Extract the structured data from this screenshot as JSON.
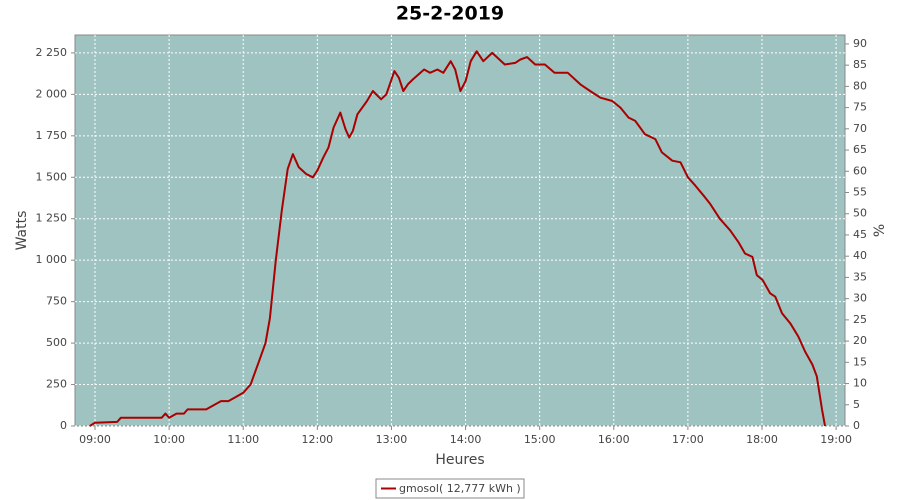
{
  "chart_data": {
    "type": "line",
    "title": "25-2-2019",
    "x_label": "Heures",
    "y_label": "Watts",
    "y2_label": "%",
    "x": [
      8.93,
      9.0,
      9.3,
      9.35,
      9.9,
      9.95,
      10.0,
      10.1,
      10.2,
      10.25,
      10.5,
      10.6,
      10.7,
      10.8,
      10.9,
      11.0,
      11.1,
      11.2,
      11.3,
      11.36,
      11.44,
      11.52,
      11.6,
      11.67,
      11.75,
      11.85,
      11.94,
      12.0,
      12.08,
      12.15,
      12.22,
      12.31,
      12.38,
      12.43,
      12.48,
      12.54,
      12.67,
      12.75,
      12.86,
      12.93,
      13.04,
      13.1,
      13.16,
      13.22,
      13.29,
      13.44,
      13.52,
      13.62,
      13.7,
      13.8,
      13.86,
      13.93,
      14.0,
      14.07,
      14.15,
      14.24,
      14.36,
      14.53,
      14.67,
      14.74,
      14.83,
      14.94,
      15.07,
      15.2,
      15.38,
      15.55,
      15.68,
      15.82,
      15.98,
      16.09,
      16.2,
      16.29,
      16.42,
      16.56,
      16.65,
      16.79,
      16.9,
      17.0,
      17.1,
      17.23,
      17.3,
      17.43,
      17.57,
      17.68,
      17.77,
      17.87,
      17.93,
      18.01,
      18.11,
      18.18,
      18.27,
      18.38,
      18.49,
      18.58,
      18.68,
      18.74,
      18.81,
      18.85
    ],
    "series": [
      {
        "name": "gmosol( 12,777 kWh )",
        "color": "#aa0000",
        "values": [
          0,
          20,
          25,
          50,
          50,
          75,
          50,
          75,
          75,
          100,
          100,
          125,
          150,
          150,
          175,
          200,
          250,
          375,
          500,
          650,
          1000,
          1300,
          1550,
          1640,
          1560,
          1520,
          1500,
          1540,
          1620,
          1680,
          1800,
          1890,
          1790,
          1740,
          1780,
          1880,
          1960,
          2020,
          1970,
          2000,
          2140,
          2100,
          2020,
          2060,
          2090,
          2150,
          2130,
          2150,
          2130,
          2200,
          2150,
          2020,
          2080,
          2200,
          2260,
          2200,
          2250,
          2180,
          2190,
          2210,
          2225,
          2180,
          2180,
          2130,
          2130,
          2060,
          2020,
          1980,
          1960,
          1920,
          1860,
          1840,
          1760,
          1730,
          1650,
          1600,
          1590,
          1500,
          1450,
          1380,
          1340,
          1250,
          1180,
          1110,
          1040,
          1020,
          910,
          880,
          800,
          780,
          680,
          620,
          540,
          450,
          370,
          300,
          100,
          0
        ]
      }
    ],
    "xlim": [
      8.73,
      19.12
    ],
    "xticks": [
      {
        "value": 9,
        "label": "09:00"
      },
      {
        "value": 10,
        "label": "10:00"
      },
      {
        "value": 11,
        "label": "11:00"
      },
      {
        "value": 12,
        "label": "12:00"
      },
      {
        "value": 13,
        "label": "13:00"
      },
      {
        "value": 14,
        "label": "14:00"
      },
      {
        "value": 15,
        "label": "15:00"
      },
      {
        "value": 16,
        "label": "16:00"
      },
      {
        "value": 17,
        "label": "17:00"
      },
      {
        "value": 18,
        "label": "18:00"
      },
      {
        "value": 19,
        "label": "19:00"
      }
    ],
    "ylim": [
      0,
      2358
    ],
    "yticks": [
      0,
      250,
      500,
      750,
      {
        "value": 1000,
        "label": "1 000"
      },
      {
        "value": 1250,
        "label": "1 250"
      },
      {
        "value": 1500,
        "label": "1 500"
      },
      {
        "value": 1750,
        "label": "1 750"
      },
      {
        "value": 2000,
        "label": "2 000"
      },
      {
        "value": 2250,
        "label": "2 250"
      }
    ],
    "y2lim": [
      0,
      92.1
    ],
    "y2ticks": [
      0,
      5,
      10,
      15,
      20,
      25,
      30,
      35,
      40,
      45,
      50,
      55,
      60,
      65,
      70,
      75,
      80,
      85,
      90
    ],
    "grid": true,
    "plot_background": "#9fc3c1",
    "legend": "bottom"
  }
}
